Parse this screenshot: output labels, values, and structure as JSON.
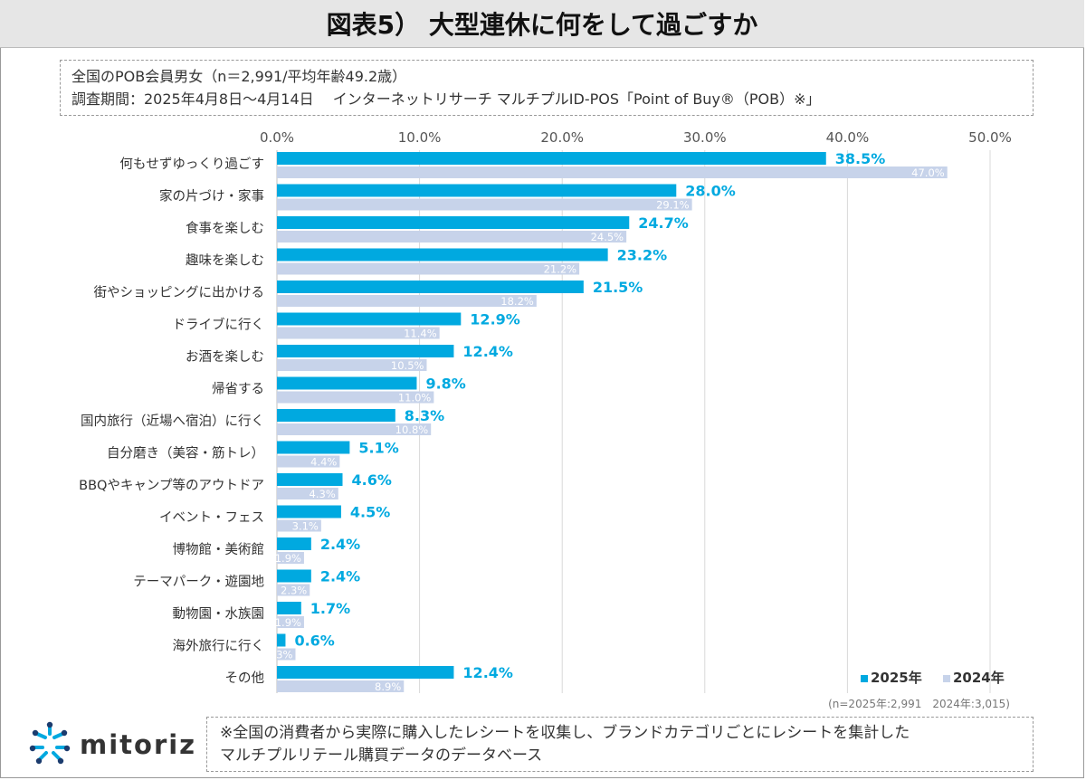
{
  "header": {
    "title": "図表5） 大型連休に何をして過ごすか"
  },
  "info": {
    "line1": "全国のPOB会員男女（n＝2,991/平均年齢49.2歳）",
    "line2": "調査期間：2025年4月8日～4月14日　 インターネットリサーチ マルチプルID-POS「Point of Buy®（POB）※」"
  },
  "sample_note": "(n=2025年:2,991　2024年:3,015)",
  "footnote": {
    "line1": "※全国の消費者から実際に購入したレシートを収集し、ブランドカテゴリごとにレシートを集計した",
    "line2": "マルチプルリテール購買データのデータベース"
  },
  "logo": {
    "text": "mitoriz",
    "icon": "mitoriz-star-logo-icon"
  },
  "colors": {
    "series_2025": "#00a9e0",
    "series_2024": "#c7d3ea",
    "grid": "#d9d9d9"
  },
  "chart_data": {
    "type": "bar",
    "orientation": "horizontal",
    "categories": [
      "何もせずゆっくり過ごす",
      "家の片づけ・家事",
      "食事を楽しむ",
      "趣味を楽しむ",
      "街やショッピングに出かける",
      "ドライブに行く",
      "お酒を楽しむ",
      "帰省する",
      "国内旅行（近場へ宿泊）に行く",
      "自分磨き（美容・筋トレ）",
      "BBQやキャンプ等のアウトドア",
      "イベント・フェス",
      "博物館・美術館",
      "テーマパーク・遊園地",
      "動物園・水族園",
      "海外旅行に行く",
      "その他"
    ],
    "series": [
      {
        "name": "2025年",
        "values": [
          38.5,
          28.0,
          24.7,
          23.2,
          21.5,
          12.9,
          12.4,
          9.8,
          8.3,
          5.1,
          4.6,
          4.5,
          2.4,
          2.4,
          1.7,
          0.6,
          12.4
        ],
        "labels": [
          "38.5%",
          "28.0%",
          "24.7%",
          "23.2%",
          "21.5%",
          "12.9%",
          "12.4%",
          "9.8%",
          "8.3%",
          "5.1%",
          "4.6%",
          "4.5%",
          "2.4%",
          "2.4%",
          "1.7%",
          "0.6%",
          "12.4%"
        ]
      },
      {
        "name": "2024年",
        "values": [
          47.0,
          29.1,
          24.5,
          21.2,
          18.2,
          11.4,
          10.5,
          11.0,
          10.8,
          4.4,
          4.3,
          3.1,
          1.9,
          2.3,
          1.9,
          1.3,
          8.9
        ],
        "labels": [
          "47.0%",
          "29.1%",
          "24.5%",
          "21.2%",
          "18.2%",
          "11.4%",
          "10.5%",
          "11.0%",
          "10.8%",
          "4.4%",
          "4.3%",
          "3.1%",
          "1.9%",
          "2.3%",
          "1.9%",
          "1.3%",
          "8.9%"
        ]
      }
    ],
    "x_ticks": [
      "0.0%",
      "10.0%",
      "20.0%",
      "30.0%",
      "40.0%",
      "50.0%"
    ],
    "xlim": [
      0,
      50
    ],
    "grid": true,
    "legend": "bottom-right"
  }
}
